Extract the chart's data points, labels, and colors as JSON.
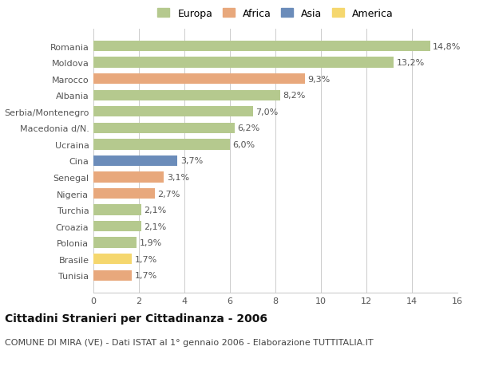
{
  "categories": [
    "Tunisia",
    "Brasile",
    "Polonia",
    "Croazia",
    "Turchia",
    "Nigeria",
    "Senegal",
    "Cina",
    "Ucraina",
    "Macedonia d/N.",
    "Serbia/Montenegro",
    "Albania",
    "Marocco",
    "Moldova",
    "Romania"
  ],
  "values": [
    1.7,
    1.7,
    1.9,
    2.1,
    2.1,
    2.7,
    3.1,
    3.7,
    6.0,
    6.2,
    7.0,
    8.2,
    9.3,
    13.2,
    14.8
  ],
  "labels": [
    "1,7%",
    "1,7%",
    "1,9%",
    "2,1%",
    "2,1%",
    "2,7%",
    "3,1%",
    "3,7%",
    "6,0%",
    "6,2%",
    "7,0%",
    "8,2%",
    "9,3%",
    "13,2%",
    "14,8%"
  ],
  "colors": [
    "#e8a87c",
    "#f5d76e",
    "#b5c98e",
    "#b5c98e",
    "#b5c98e",
    "#e8a87c",
    "#e8a87c",
    "#6b8cba",
    "#b5c98e",
    "#b5c98e",
    "#b5c98e",
    "#b5c98e",
    "#e8a87c",
    "#b5c98e",
    "#b5c98e"
  ],
  "legend_labels": [
    "Europa",
    "Africa",
    "Asia",
    "America"
  ],
  "legend_colors": [
    "#b5c98e",
    "#e8a87c",
    "#6b8cba",
    "#f5d76e"
  ],
  "title": "Cittadini Stranieri per Cittadinanza - 2006",
  "subtitle": "COMUNE DI MIRA (VE) - Dati ISTAT al 1° gennaio 2006 - Elaborazione TUTTITALIA.IT",
  "xlim": [
    0,
    16
  ],
  "xticks": [
    0,
    2,
    4,
    6,
    8,
    10,
    12,
    14,
    16
  ],
  "bar_background": "#ffffff",
  "grid_color": "#cccccc",
  "title_fontsize": 10,
  "subtitle_fontsize": 8,
  "label_fontsize": 8,
  "tick_fontsize": 8,
  "legend_fontsize": 9
}
